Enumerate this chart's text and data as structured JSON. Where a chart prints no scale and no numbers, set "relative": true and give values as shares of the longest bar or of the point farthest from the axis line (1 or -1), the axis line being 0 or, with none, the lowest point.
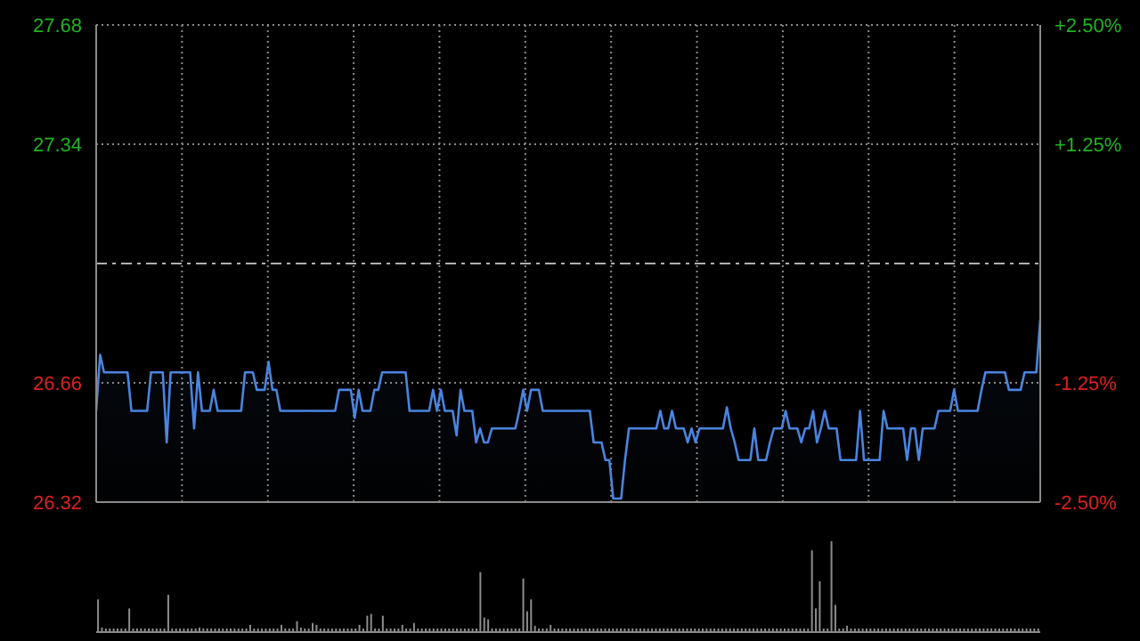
{
  "chart_data": [
    {
      "type": "area",
      "categories": [
        null,
        null,
        null,
        null,
        null,
        null,
        null,
        null,
        null,
        null,
        null,
        null,
        null,
        null,
        null,
        null,
        null,
        null,
        null,
        null,
        null,
        null,
        null,
        null,
        null,
        null,
        null,
        null,
        null,
        null,
        null,
        null,
        null,
        null,
        null,
        null,
        null,
        null,
        null,
        null,
        null,
        null,
        null,
        null,
        null,
        null,
        null,
        null,
        null,
        null,
        null,
        null,
        null,
        null,
        null,
        null,
        null,
        null,
        null,
        null,
        null,
        null,
        null,
        null,
        null,
        null,
        null,
        null,
        null,
        null,
        null,
        null,
        null,
        null,
        null,
        null,
        null,
        null,
        null,
        null,
        null,
        null,
        null,
        null,
        null,
        null,
        null,
        null,
        null,
        null,
        null,
        null,
        null,
        null,
        null,
        null,
        null,
        null,
        null,
        null,
        null,
        null,
        null,
        null,
        null,
        null,
        null,
        null,
        null,
        null,
        null,
        null,
        null,
        null,
        null,
        null,
        null,
        null,
        null,
        null,
        null,
        null,
        null,
        null,
        null,
        null,
        null,
        null,
        null,
        null,
        null,
        null,
        null,
        null,
        null,
        null,
        null,
        null,
        null,
        null,
        null,
        null,
        null,
        null,
        null,
        null,
        null,
        null,
        null,
        null,
        null,
        null,
        null,
        null,
        null,
        null,
        null,
        null,
        null,
        null,
        null,
        null,
        null,
        null,
        null,
        null,
        null,
        null,
        null,
        null,
        null,
        null,
        null,
        null,
        null,
        null,
        null,
        null,
        null,
        null,
        null,
        null,
        null,
        null,
        null,
        null,
        null,
        null,
        null,
        null,
        null,
        null,
        null,
        null,
        null,
        null,
        null,
        null,
        null,
        null,
        null,
        null,
        null,
        null,
        null,
        null,
        null,
        null,
        null,
        null,
        null,
        null,
        null,
        null,
        null,
        null,
        null,
        null,
        null,
        null,
        null,
        null,
        null,
        null,
        null,
        null,
        null,
        null,
        null,
        null,
        null,
        null,
        null,
        null,
        null,
        null,
        null,
        null,
        null,
        null,
        null,
        null
      ],
      "series": [
        {
          "color": "#4a85e0",
          "values": [
            26.58,
            26.74,
            26.69,
            26.69,
            26.69,
            26.69,
            26.69,
            26.69,
            26.69,
            26.58,
            26.58,
            26.58,
            26.58,
            26.58,
            26.69,
            26.69,
            26.69,
            26.69,
            26.49,
            26.69,
            26.69,
            26.69,
            26.69,
            26.69,
            26.69,
            26.53,
            26.69,
            26.58,
            26.58,
            26.58,
            26.64,
            26.58,
            26.58,
            26.58,
            26.58,
            26.58,
            26.58,
            26.58,
            26.69,
            26.69,
            26.69,
            26.64,
            26.64,
            26.64,
            26.72,
            26.64,
            26.64,
            26.58,
            26.58,
            26.58,
            26.58,
            26.58,
            26.58,
            26.58,
            26.58,
            26.58,
            26.58,
            26.58,
            26.58,
            26.58,
            26.58,
            26.58,
            26.64,
            26.64,
            26.64,
            26.64,
            26.56,
            26.64,
            26.58,
            26.58,
            26.58,
            26.64,
            26.64,
            26.69,
            26.69,
            26.69,
            26.69,
            26.69,
            26.69,
            26.69,
            26.58,
            26.58,
            26.58,
            26.58,
            26.58,
            26.58,
            26.64,
            26.58,
            26.64,
            26.58,
            26.58,
            26.58,
            26.51,
            26.64,
            26.58,
            26.58,
            26.58,
            26.49,
            26.53,
            26.49,
            26.49,
            26.53,
            26.53,
            26.53,
            26.53,
            26.53,
            26.53,
            26.53,
            26.58,
            26.64,
            26.58,
            26.64,
            26.64,
            26.64,
            26.58,
            26.58,
            26.58,
            26.58,
            26.58,
            26.58,
            26.58,
            26.58,
            26.58,
            26.58,
            26.58,
            26.58,
            26.58,
            26.49,
            26.49,
            26.49,
            26.44,
            26.44,
            26.33,
            26.33,
            26.33,
            26.44,
            26.53,
            26.53,
            26.53,
            26.53,
            26.53,
            26.53,
            26.53,
            26.53,
            26.58,
            26.53,
            26.53,
            26.58,
            26.53,
            26.53,
            26.53,
            26.49,
            26.53,
            26.49,
            26.53,
            26.53,
            26.53,
            26.53,
            26.53,
            26.53,
            26.53,
            26.59,
            26.53,
            26.49,
            26.44,
            26.44,
            26.44,
            26.44,
            26.53,
            26.44,
            26.44,
            26.44,
            26.49,
            26.53,
            26.53,
            26.53,
            26.58,
            26.53,
            26.53,
            26.53,
            26.49,
            26.53,
            26.53,
            26.58,
            26.49,
            26.53,
            26.58,
            26.53,
            26.53,
            26.53,
            26.44,
            26.44,
            26.44,
            26.44,
            26.44,
            26.58,
            26.44,
            26.44,
            26.44,
            26.44,
            26.44,
            26.58,
            26.53,
            26.53,
            26.53,
            26.53,
            26.53,
            26.44,
            26.53,
            26.53,
            26.44,
            26.53,
            26.53,
            26.53,
            26.53,
            26.58,
            26.58,
            26.58,
            26.58,
            26.64,
            26.58,
            26.58,
            26.58,
            26.58,
            26.58,
            26.58,
            26.64,
            26.69,
            26.69,
            26.69,
            26.69,
            26.69,
            26.69,
            26.64,
            26.64,
            26.64,
            26.64,
            26.69,
            26.69,
            26.69,
            26.69,
            26.84
          ]
        }
      ],
      "ylim": [
        26.32,
        27.68
      ],
      "yticks": [
        27.68,
        27.34,
        26.66,
        26.32
      ],
      "y2lim": [
        -2.5,
        2.5
      ],
      "y2ticks": [
        {
          "value": 2.5,
          "label": "+2.50%"
        },
        {
          "value": 1.25,
          "label": "+1.25%"
        },
        {
          "value": -1.25,
          "label": "-1.25%"
        },
        {
          "value": -2.5,
          "label": "-2.50%"
        }
      ],
      "ref_lines": [
        {
          "axis": "y",
          "value": 27.0,
          "line_style": "dashed"
        }
      ],
      "grid": true
    },
    {
      "type": "bar",
      "relative": true,
      "categories": [
        null,
        null,
        null,
        null,
        null,
        null,
        null,
        null,
        null,
        null,
        null,
        null,
        null,
        null,
        null,
        null,
        null,
        null,
        null,
        null,
        null,
        null,
        null,
        null,
        null,
        null,
        null,
        null,
        null,
        null,
        null,
        null,
        null,
        null,
        null,
        null,
        null,
        null,
        null,
        null,
        null,
        null,
        null,
        null,
        null,
        null,
        null,
        null,
        null,
        null,
        null,
        null,
        null,
        null,
        null,
        null,
        null,
        null,
        null,
        null,
        null,
        null,
        null,
        null,
        null,
        null,
        null,
        null,
        null,
        null,
        null,
        null,
        null,
        null,
        null,
        null,
        null,
        null,
        null,
        null,
        null,
        null,
        null,
        null,
        null,
        null,
        null,
        null,
        null,
        null,
        null,
        null,
        null,
        null,
        null,
        null,
        null,
        null,
        null,
        null,
        null,
        null,
        null,
        null,
        null,
        null,
        null,
        null,
        null,
        null,
        null,
        null,
        null,
        null,
        null,
        null,
        null,
        null,
        null,
        null,
        null,
        null,
        null,
        null,
        null,
        null,
        null,
        null,
        null,
        null,
        null,
        null,
        null,
        null,
        null,
        null,
        null,
        null,
        null,
        null,
        null,
        null,
        null,
        null,
        null,
        null,
        null,
        null,
        null,
        null,
        null,
        null,
        null,
        null,
        null,
        null,
        null,
        null,
        null,
        null,
        null,
        null,
        null,
        null,
        null,
        null,
        null,
        null,
        null,
        null,
        null,
        null,
        null,
        null,
        null,
        null,
        null,
        null,
        null,
        null,
        null,
        null,
        null,
        null,
        null,
        null,
        null,
        null,
        null,
        null,
        null,
        null,
        null,
        null,
        null,
        null,
        null,
        null,
        null,
        null,
        null,
        null,
        null,
        null,
        null,
        null,
        null,
        null,
        null,
        null,
        null,
        null,
        null,
        null,
        null,
        null,
        null,
        null,
        null,
        null,
        null,
        null,
        null,
        null,
        null,
        null,
        null,
        null,
        null,
        null,
        null,
        null,
        null,
        null,
        null,
        null,
        null,
        null,
        null,
        null,
        null,
        null
      ],
      "color": "#8c8c8c",
      "values": [
        0.36,
        0.05,
        0.04,
        0.04,
        0.04,
        0.04,
        0.04,
        0.04,
        0.26,
        0.04,
        0.04,
        0.04,
        0.04,
        0.04,
        0.04,
        0.04,
        0.04,
        0.04,
        0.41,
        0.04,
        0.04,
        0.04,
        0.04,
        0.04,
        0.04,
        0.04,
        0.05,
        0.04,
        0.04,
        0.04,
        0.04,
        0.04,
        0.04,
        0.04,
        0.04,
        0.04,
        0.04,
        0.04,
        0.04,
        0.08,
        0.04,
        0.04,
        0.04,
        0.04,
        0.04,
        0.04,
        0.04,
        0.08,
        0.04,
        0.04,
        0.04,
        0.12,
        0.05,
        0.04,
        0.04,
        0.1,
        0.08,
        0.04,
        0.04,
        0.04,
        0.04,
        0.04,
        0.04,
        0.04,
        0.04,
        0.04,
        0.04,
        0.08,
        0.04,
        0.18,
        0.2,
        0.04,
        0.04,
        0.18,
        0.04,
        0.04,
        0.04,
        0.04,
        0.08,
        0.04,
        0.04,
        0.1,
        0.04,
        0.04,
        0.04,
        0.04,
        0.04,
        0.04,
        0.04,
        0.04,
        0.04,
        0.04,
        0.04,
        0.04,
        0.04,
        0.04,
        0.04,
        0.04,
        0.66,
        0.16,
        0.14,
        0.04,
        0.04,
        0.04,
        0.04,
        0.04,
        0.04,
        0.04,
        0.04,
        0.59,
        0.23,
        0.36,
        0.07,
        0.04,
        0.04,
        0.04,
        0.08,
        0.04,
        0.04,
        0.04,
        0.04,
        0.04,
        0.04,
        0.04,
        0.04,
        0.04,
        0.04,
        0.04,
        0.04,
        0.04,
        0.04,
        0.04,
        0.04,
        0.04,
        0.04,
        0.04,
        0.04,
        0.04,
        0.04,
        0.04,
        0.04,
        0.04,
        0.04,
        0.04,
        0.04,
        0.04,
        0.04,
        0.04,
        0.04,
        0.04,
        0.04,
        0.04,
        0.04,
        0.04,
        0.04,
        0.04,
        0.04,
        0.04,
        0.04,
        0.04,
        0.04,
        0.04,
        0.04,
        0.04,
        0.04,
        0.04,
        0.04,
        0.04,
        0.04,
        0.04,
        0.04,
        0.04,
        0.04,
        0.04,
        0.04,
        0.04,
        0.04,
        0.04,
        0.04,
        0.04,
        0.04,
        0.04,
        0.04,
        0.9,
        0.26,
        0.56,
        0.04,
        0.04,
        1,
        0.3,
        0.04,
        0.04,
        0.07,
        0.04,
        0.04,
        0.04,
        0.04,
        0.04,
        0.04,
        0.04,
        0.04,
        0.04,
        0.04,
        0.04,
        0.04,
        0.04,
        0.04,
        0.04,
        0.04,
        0.04,
        0.04,
        0.04,
        0.04,
        0.04,
        0.04,
        0.04,
        0.04,
        0.04,
        0.04,
        0.04,
        0.04,
        0.04,
        0.04,
        0.04,
        0.04,
        0.04,
        0.04,
        0.04,
        0.04,
        0.04,
        0.04,
        0.04,
        0.04,
        0.04,
        0.04,
        0.04,
        0.04,
        0.04,
        0.04,
        0.04,
        0.04,
        0.04
      ]
    }
  ]
}
